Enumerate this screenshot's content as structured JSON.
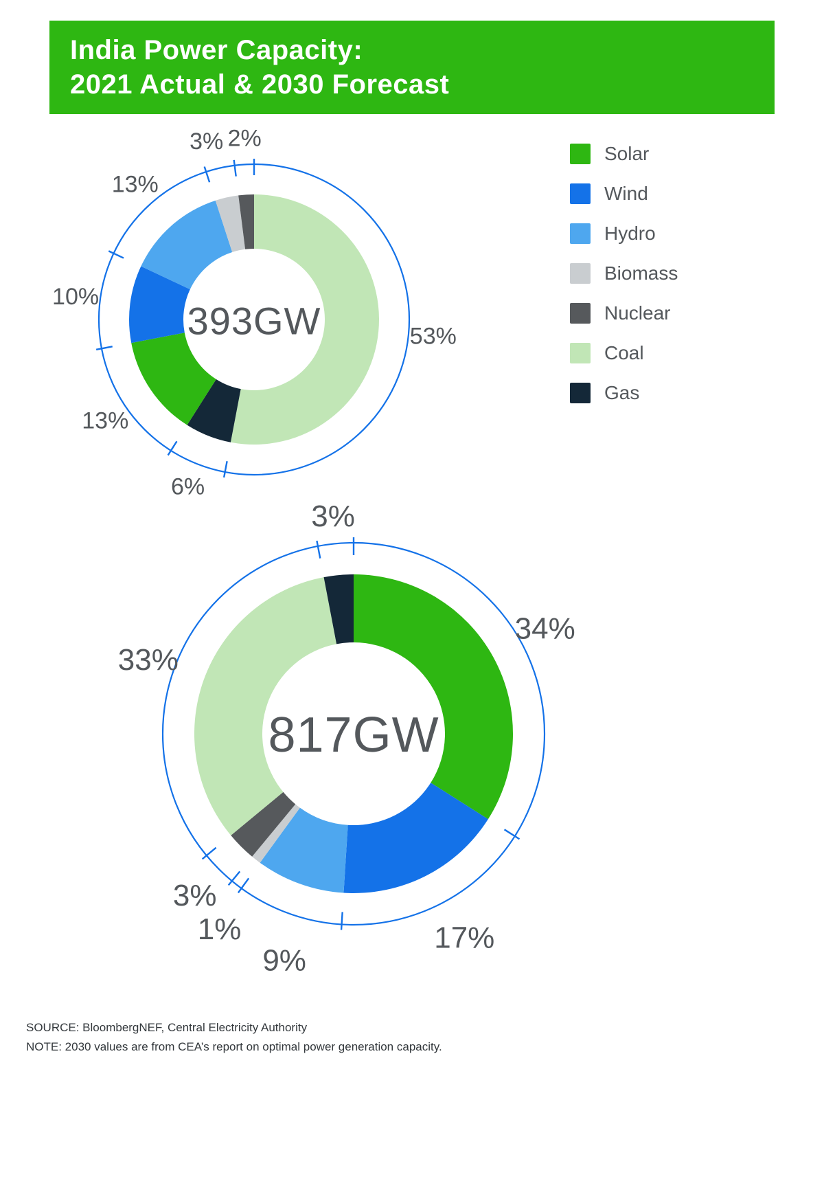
{
  "header": {
    "title_line1": "India Power Capacity:",
    "title_line2": "2021 Actual & 2030 Forecast",
    "background_color": "#2eb712"
  },
  "legend": {
    "items": [
      {
        "label": "Solar",
        "color": "#2eb712"
      },
      {
        "label": "Wind",
        "color": "#1472e8"
      },
      {
        "label": "Hydro",
        "color": "#4ea7ef"
      },
      {
        "label": "Biomass",
        "color": "#c9cdd0"
      },
      {
        "label": "Nuclear",
        "color": "#56595c"
      },
      {
        "label": "Coal",
        "color": "#c1e6b6"
      },
      {
        "label": "Gas",
        "color": "#142838"
      }
    ]
  },
  "chart_data": [
    {
      "type": "pie",
      "variant": "donut",
      "year": "2021",
      "center_label": "393GW",
      "direction": "clockwise",
      "start_angle_deg": 0,
      "segments": [
        {
          "label": "Coal",
          "value": 53
        },
        {
          "label": "Gas",
          "value": 6
        },
        {
          "label": "Solar",
          "value": 13
        },
        {
          "label": "Wind",
          "value": 10
        },
        {
          "label": "Hydro",
          "value": 13
        },
        {
          "label": "Biomass",
          "value": 3
        },
        {
          "label": "Nuclear",
          "value": 2
        }
      ],
      "label_format": "percent",
      "outer_ring_color": "#1472e8",
      "center_label_color": "#54585c"
    },
    {
      "type": "pie",
      "variant": "donut",
      "year": "2030",
      "center_label": "817GW",
      "direction": "clockwise",
      "start_angle_deg": 0,
      "segments": [
        {
          "label": "Solar",
          "value": 34
        },
        {
          "label": "Wind",
          "value": 17
        },
        {
          "label": "Hydro",
          "value": 9
        },
        {
          "label": "Biomass",
          "value": 1
        },
        {
          "label": "Nuclear",
          "value": 3
        },
        {
          "label": "Coal",
          "value": 33
        },
        {
          "label": "Gas",
          "value": 3
        }
      ],
      "label_format": "percent",
      "outer_ring_color": "#1472e8",
      "center_label_color": "#54585c"
    }
  ],
  "footer": {
    "source": "SOURCE: BloombergNEF, Central Electricity Authority",
    "note": "NOTE: 2030 values are from CEA’s report on optimal power generation capacity."
  }
}
